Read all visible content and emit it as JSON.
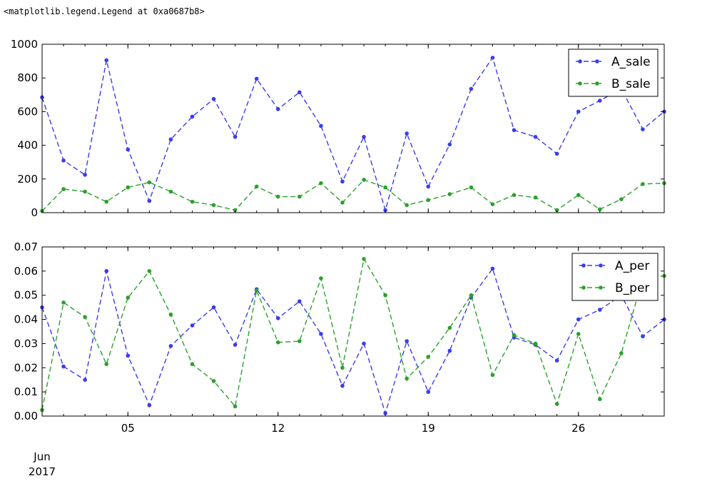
{
  "output_repr": "<matplotlib.legend.Legend at 0xa0687b8>",
  "chart_data": [
    {
      "type": "line",
      "x_dates": [
        "2017-06-01",
        "2017-06-02",
        "2017-06-03",
        "2017-06-04",
        "2017-06-05",
        "2017-06-06",
        "2017-06-07",
        "2017-06-08",
        "2017-06-09",
        "2017-06-10",
        "2017-06-11",
        "2017-06-12",
        "2017-06-13",
        "2017-06-14",
        "2017-06-15",
        "2017-06-16",
        "2017-06-17",
        "2017-06-18",
        "2017-06-19",
        "2017-06-20",
        "2017-06-21",
        "2017-06-22",
        "2017-06-23",
        "2017-06-24",
        "2017-06-25",
        "2017-06-26",
        "2017-06-27",
        "2017-06-28",
        "2017-06-29",
        "2017-06-30"
      ],
      "series": [
        {
          "name": "A_sale",
          "color": "#3b3bf0",
          "values": [
            685,
            310,
            225,
            905,
            375,
            70,
            435,
            570,
            675,
            450,
            795,
            615,
            715,
            515,
            185,
            450,
            15,
            470,
            155,
            405,
            735,
            920,
            490,
            450,
            350,
            600,
            665,
            735,
            495,
            600
          ]
        },
        {
          "name": "B_sale",
          "color": "#2ca02c",
          "values": [
            10,
            140,
            125,
            65,
            150,
            180,
            125,
            65,
            45,
            15,
            155,
            95,
            95,
            175,
            60,
            195,
            150,
            45,
            75,
            110,
            150,
            50,
            105,
            90,
            15,
            105,
            20,
            80,
            170,
            175
          ]
        }
      ],
      "ylim": [
        0,
        1000
      ],
      "yticks": [
        "0",
        "200",
        "400",
        "600",
        "800",
        "1000"
      ],
      "legend": "upper right",
      "grid": false
    },
    {
      "type": "line",
      "x_dates": [
        "2017-06-01",
        "2017-06-02",
        "2017-06-03",
        "2017-06-04",
        "2017-06-05",
        "2017-06-06",
        "2017-06-07",
        "2017-06-08",
        "2017-06-09",
        "2017-06-10",
        "2017-06-11",
        "2017-06-12",
        "2017-06-13",
        "2017-06-14",
        "2017-06-15",
        "2017-06-16",
        "2017-06-17",
        "2017-06-18",
        "2017-06-19",
        "2017-06-20",
        "2017-06-21",
        "2017-06-22",
        "2017-06-23",
        "2017-06-24",
        "2017-06-25",
        "2017-06-26",
        "2017-06-27",
        "2017-06-28",
        "2017-06-29",
        "2017-06-30"
      ],
      "series": [
        {
          "name": "A_per",
          "color": "#3b3bf0",
          "values": [
            0.045,
            0.0205,
            0.015,
            0.06,
            0.025,
            0.0045,
            0.029,
            0.0375,
            0.045,
            0.0295,
            0.0525,
            0.0405,
            0.0475,
            0.034,
            0.0125,
            0.03,
            0.0012,
            0.031,
            0.01,
            0.027,
            0.049,
            0.061,
            0.0325,
            0.0295,
            0.023,
            0.04,
            0.044,
            0.05,
            0.033,
            0.04
          ]
        },
        {
          "name": "B_per",
          "color": "#2ca02c",
          "values": [
            0.0025,
            0.047,
            0.041,
            0.0215,
            0.049,
            0.06,
            0.042,
            0.0215,
            0.0145,
            0.004,
            0.052,
            0.0305,
            0.031,
            0.057,
            0.02,
            0.065,
            0.05,
            0.0155,
            0.0245,
            0.0365,
            0.05,
            0.017,
            0.0335,
            0.03,
            0.005,
            0.034,
            0.007,
            0.026,
            0.057,
            0.058
          ]
        }
      ],
      "ylim": [
        0,
        0.07
      ],
      "yticks": [
        "0.00",
        "0.01",
        "0.02",
        "0.03",
        "0.04",
        "0.05",
        "0.06",
        "0.07"
      ],
      "legend": "upper right",
      "grid": false
    }
  ],
  "x_axis": {
    "tick_dates": [
      "2017-06-05",
      "2017-06-12",
      "2017-06-19",
      "2017-06-26"
    ],
    "tick_labels": [
      "05",
      "12",
      "19",
      "26"
    ],
    "month_label": "Jun",
    "year_label": "2017"
  }
}
